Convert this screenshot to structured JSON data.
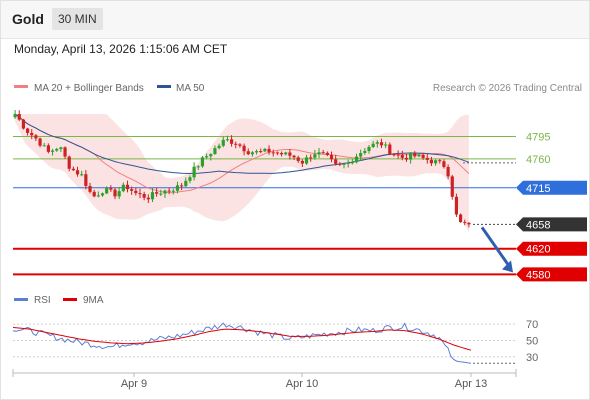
{
  "header": {
    "symbol": "Gold",
    "timeframe": "30 MIN"
  },
  "datetime": "Monday, April 13, 2026 1:15:06 AM CET",
  "legend": {
    "bollinger": {
      "label": "MA 20 + Bollinger Bands",
      "color": "#f08080"
    },
    "ma50": {
      "label": "MA 50",
      "color": "#2f5597"
    }
  },
  "copyright": "Research © 2026 Trading Central",
  "rsi_legend": {
    "rsi": {
      "label": "RSI",
      "color": "#5b7fd6"
    },
    "ma9": {
      "label": "9MA",
      "color": "#e00000"
    }
  },
  "colors": {
    "up": "#2ca02c",
    "down": "#cc2222",
    "band": "#fbd9d9",
    "support": "#e00000",
    "resistance": "#7ab648",
    "pivot": "#2f6fdc",
    "arrow": "#2f5fb0"
  },
  "chart_data": [
    {
      "type": "candlestick",
      "title": "",
      "ylim": [
        4565,
        4830
      ],
      "x_ticks": [
        "Apr 9",
        "Apr 10",
        "Apr 13"
      ],
      "levels": [
        {
          "label": "4795",
          "value": 4795,
          "kind": "resistance"
        },
        {
          "label": "4760",
          "value": 4760,
          "kind": "resistance"
        },
        {
          "label": "4715",
          "value": 4715,
          "kind": "pivot"
        },
        {
          "label": "4658",
          "value": 4658,
          "kind": "last"
        },
        {
          "label": "4620",
          "value": 4620,
          "kind": "support"
        },
        {
          "label": "4580",
          "value": 4580,
          "kind": "support"
        }
      ],
      "close_anchors": [
        4830,
        4805,
        4790,
        4770,
        4780,
        4745,
        4735,
        4700,
        4712,
        4705,
        4718,
        4705,
        4700,
        4708,
        4712,
        4718,
        4740,
        4760,
        4775,
        4790,
        4785,
        4772,
        4770,
        4772,
        4768,
        4765,
        4755,
        4770,
        4765,
        4748,
        4752,
        4768,
        4780,
        4785,
        4770,
        4762,
        4765,
        4760,
        4755,
        4748,
        4660,
        4658
      ],
      "forecast": {
        "from": 4658,
        "to": 4580
      }
    },
    {
      "type": "line",
      "title": "RSI",
      "ylim": [
        15,
        80
      ],
      "y_ticks": [
        70,
        50,
        30
      ],
      "rsi_anchors": [
        65,
        62,
        57,
        52,
        48,
        45,
        42,
        47,
        48,
        52,
        55,
        60,
        65,
        70,
        66,
        60,
        56,
        52,
        55,
        58,
        60,
        63,
        62,
        66,
        67,
        62,
        55,
        25,
        22
      ],
      "ma9_anchors": [
        66,
        64,
        60,
        56,
        52,
        49,
        47,
        46,
        47,
        49,
        52,
        56,
        61,
        64,
        63,
        61,
        58,
        55,
        55,
        56,
        58,
        60,
        61,
        63,
        62,
        58,
        52,
        44,
        38
      ]
    }
  ]
}
